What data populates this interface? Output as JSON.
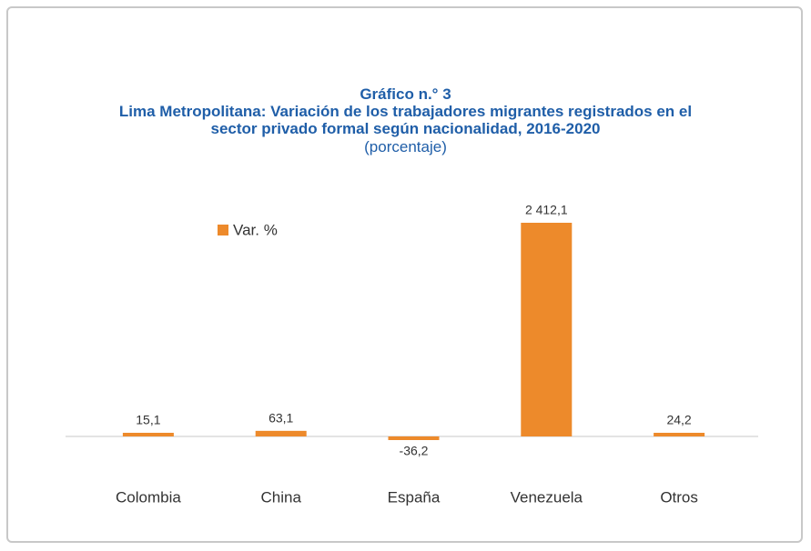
{
  "chart_data": {
    "type": "bar",
    "title": "Gráfico n.° 3",
    "subtitle": "Lima Metropolitana: Variación de los trabajadores migrantes registrados en el sector privado formal según nacionalidad, 2016-2020",
    "unit_label": "(porcentaje)",
    "categories": [
      "Colombia",
      "China",
      "España",
      "Venezuela",
      "Otros"
    ],
    "series": [
      {
        "name": "Var. %",
        "color": "#ed8a2b",
        "values": [
          15.1,
          63.1,
          -36.2,
          2412.1,
          24.2
        ],
        "value_labels": [
          "15,1",
          "63,1",
          "-36,2",
          "2 412,1",
          "24,2"
        ]
      }
    ],
    "legend": "upper-left"
  }
}
